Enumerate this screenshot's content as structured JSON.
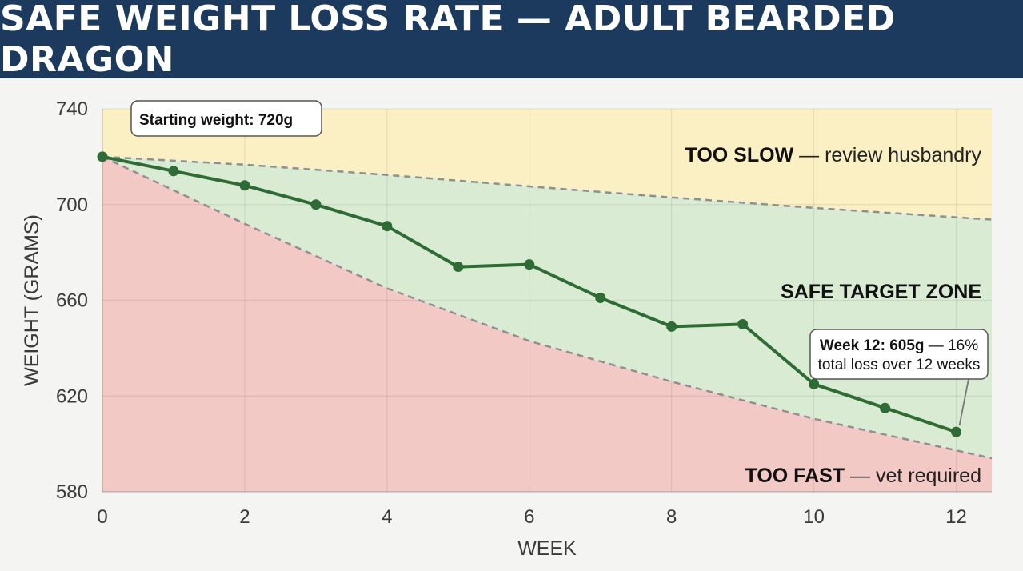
{
  "title": "SAFE WEIGHT LOSS RATE — ADULT BEARDED DRAGON",
  "colors": {
    "header": "#1c3a5e",
    "line": "#2e6b35",
    "too_slow_zone": "#fbefc4",
    "safe_zone": "#d9ecd3",
    "too_fast_zone": "#f3c9c6",
    "bound_line": "#8f8f8f"
  },
  "chart_data": {
    "type": "line",
    "xlabel": "WEEK",
    "ylabel": "WEIGHT (GRAMS)",
    "xlim": [
      0,
      12.5
    ],
    "ylim": [
      580,
      740
    ],
    "x_ticks": [
      0,
      2,
      4,
      6,
      8,
      10,
      12
    ],
    "y_ticks": [
      580,
      620,
      660,
      700,
      740
    ],
    "grid": true,
    "series": [
      {
        "x": [
          0,
          1,
          2,
          3,
          4,
          5,
          6,
          7,
          8,
          9,
          10,
          11,
          12
        ],
        "values": [
          720,
          714,
          708,
          700,
          691,
          674,
          675,
          661,
          649,
          650,
          625,
          615,
          605
        ]
      }
    ],
    "upper_bound": {
      "x": [
        0,
        2,
        4,
        6,
        8,
        10,
        12.5
      ],
      "values": [
        720,
        716.7,
        712.4,
        707.6,
        703,
        698.6,
        693.7
      ]
    },
    "lower_bound": {
      "x": [
        0,
        2,
        4,
        6,
        8,
        10,
        12.5
      ],
      "values": [
        720,
        692,
        665,
        643,
        626,
        610.5,
        594
      ]
    },
    "zones": {
      "too_slow": {
        "bold": "TOO SLOW",
        "rest": " — review husbandry"
      },
      "safe": {
        "bold": "SAFE TARGET ZONE",
        "rest": ""
      },
      "too_fast": {
        "bold": "TOO FAST",
        "rest": " — vet required"
      }
    },
    "annotations": {
      "start": "Starting weight: 720g",
      "end_bold": "Week 12: 605g",
      "end_rest": " — 16%",
      "end_line2": "total loss over 12 weeks"
    }
  }
}
